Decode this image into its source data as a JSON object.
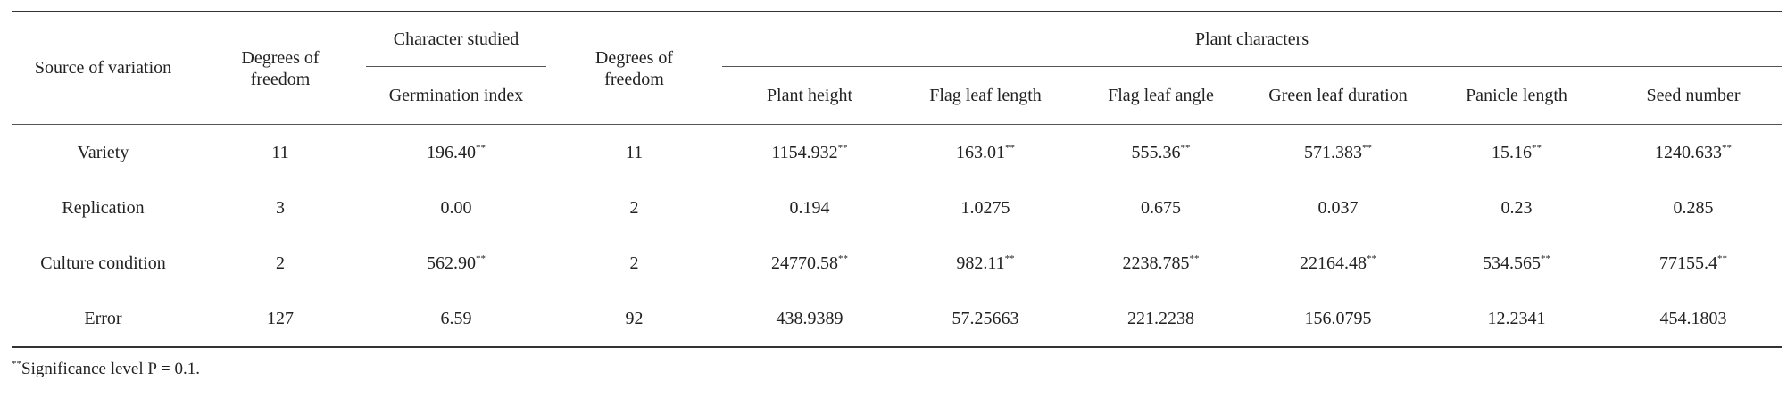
{
  "table": {
    "header": {
      "source": "Source of variation",
      "df1": "Degrees of freedom",
      "character_studied": "Character studied",
      "germination": "Germination index",
      "df2": "Degrees of freedom",
      "plant_characters": "Plant characters",
      "plant_columns": [
        "Plant height",
        "Flag leaf length",
        "Flag leaf angle",
        "Green leaf duration",
        "Panicle length",
        "Seed number"
      ]
    },
    "rows": [
      [
        "Variety",
        "11",
        {
          "text": "196.40",
          "sup": "**"
        },
        "11",
        {
          "text": "1154.932",
          "sup": "**"
        },
        {
          "text": "163.01",
          "sup": "**"
        },
        {
          "text": "555.36",
          "sup": "**"
        },
        {
          "text": "571.383",
          "sup": "**"
        },
        {
          "text": "15.16",
          "sup": "**"
        },
        {
          "text": "1240.633",
          "sup": "**"
        }
      ],
      [
        "Replication",
        "3",
        "0.00",
        "2",
        "0.194",
        "1.0275",
        "0.675",
        "0.037",
        "0.23",
        "0.285"
      ],
      [
        "Culture condition",
        "2",
        {
          "text": "562.90",
          "sup": "**"
        },
        "2",
        {
          "text": "24770.58",
          "sup": "**"
        },
        {
          "text": "982.11",
          "sup": "**"
        },
        {
          "text": "2238.785",
          "sup": "**"
        },
        {
          "text": "22164.48",
          "sup": "**"
        },
        {
          "text": "534.565",
          "sup": "**"
        },
        {
          "text": "77155.4",
          "sup": "**"
        }
      ],
      [
        "Error",
        "127",
        "6.59",
        "92",
        "438.9389",
        "57.25663",
        "221.2238",
        "156.0795",
        "12.2341",
        "454.1803"
      ]
    ]
  },
  "footnote": {
    "sup": "**",
    "text": "Significance level P = 0.1."
  }
}
